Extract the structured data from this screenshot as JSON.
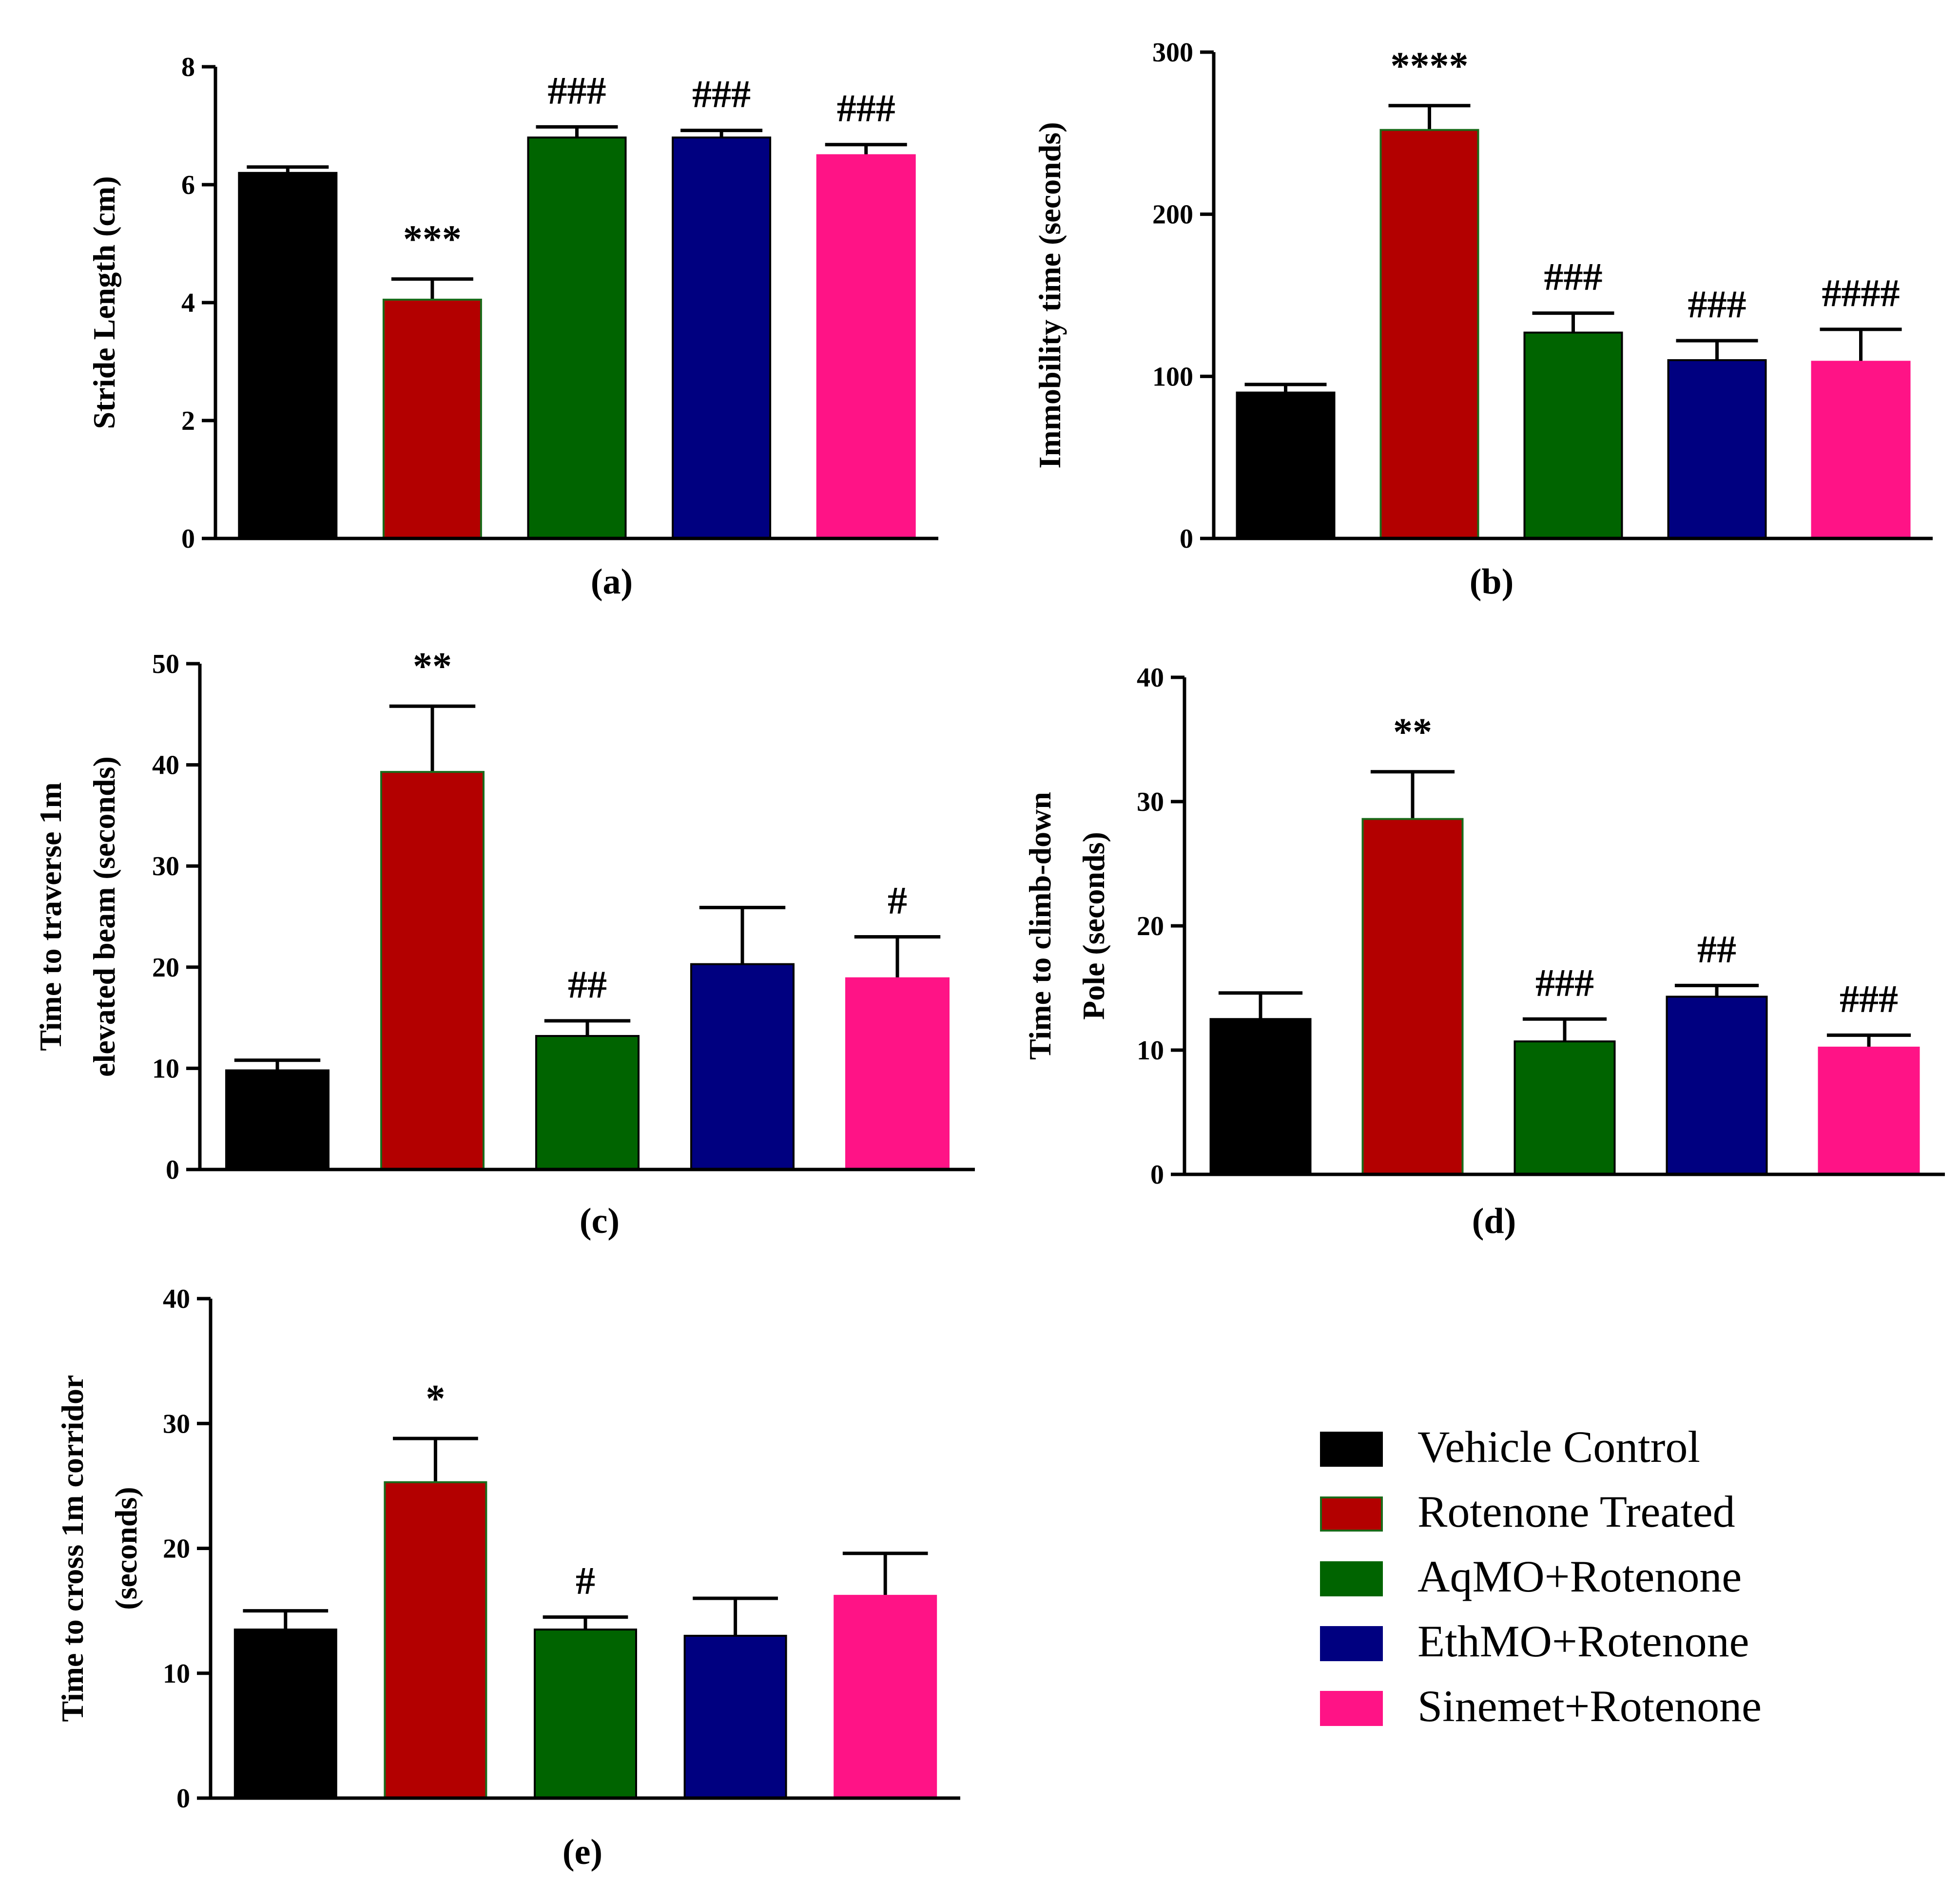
{
  "figure_title": "",
  "groups": [
    {
      "name": "Vehicle Control",
      "color": "#000000"
    },
    {
      "name": "Rotenone Treated",
      "color": "#b30000"
    },
    {
      "name": "AqMO+Rotenone",
      "color": "#006400"
    },
    {
      "name": "EthMO+Rotenone",
      "color": "#000080"
    },
    {
      "name": "Sinemet+Rotenone",
      "color": "#ff1386"
    }
  ],
  "chart_data": [
    {
      "type": "bar",
      "panel": "(a)",
      "ylabel": [
        "Stride Length (cm)"
      ],
      "ylim": [
        0,
        8
      ],
      "yticks": [
        0,
        2,
        4,
        6,
        8
      ],
      "categories": [
        "Vehicle Control",
        "Rotenone Treated",
        "AqMO+Rotenone",
        "EthMO+Rotenone",
        "Sinemet+Rotenone"
      ],
      "values": [
        6.2,
        4.05,
        6.8,
        6.8,
        6.5
      ],
      "errors": [
        0.1,
        0.35,
        0.18,
        0.12,
        0.18
      ],
      "significance": [
        "",
        "***",
        "###",
        "###",
        "###"
      ]
    },
    {
      "type": "bar",
      "panel": "(b)",
      "ylabel": [
        "Immobility time (seconds)"
      ],
      "ylim": [
        0,
        300
      ],
      "yticks": [
        0,
        100,
        200,
        300
      ],
      "categories": [
        "Vehicle Control",
        "Rotenone Treated",
        "AqMO+Rotenone",
        "EthMO+Rotenone",
        "Sinemet+Rotenone"
      ],
      "values": [
        90,
        252,
        127,
        110,
        109
      ],
      "errors": [
        5,
        15,
        12,
        12,
        20
      ],
      "significance": [
        "",
        "****",
        "###",
        "###",
        "####"
      ]
    },
    {
      "type": "bar",
      "panel": "(c)",
      "ylabel": [
        "Time to traverse 1m",
        "elevated beam (seconds)"
      ],
      "ylim": [
        0,
        50
      ],
      "yticks": [
        0,
        10,
        20,
        30,
        40,
        50
      ],
      "categories": [
        "Vehicle Control",
        "Rotenone Treated",
        "AqMO+Rotenone",
        "EthMO+Rotenone",
        "Sinemet+Rotenone"
      ],
      "values": [
        9.8,
        39.3,
        13.2,
        20.3,
        18.9
      ],
      "errors": [
        1.0,
        6.5,
        1.5,
        5.6,
        4.1
      ],
      "significance": [
        "",
        "**",
        "##",
        "",
        "#"
      ]
    },
    {
      "type": "bar",
      "panel": "(d)",
      "ylabel": [
        "Time to climb-down",
        "Pole  (seconds)"
      ],
      "ylim": [
        0,
        40
      ],
      "yticks": [
        0,
        10,
        20,
        30,
        40
      ],
      "categories": [
        "Vehicle Control",
        "Rotenone Treated",
        "AqMO+Rotenone",
        "EthMO+Rotenone",
        "Sinemet+Rotenone"
      ],
      "values": [
        12.5,
        28.6,
        10.7,
        14.3,
        10.2
      ],
      "errors": [
        2.1,
        3.8,
        1.8,
        0.9,
        1.0
      ],
      "significance": [
        "",
        "**",
        "###",
        "##",
        "###"
      ]
    },
    {
      "type": "bar",
      "panel": "(e)",
      "ylabel": [
        "Time to cross 1m corridor",
        "(seconds)"
      ],
      "ylim": [
        0,
        40
      ],
      "yticks": [
        0,
        10,
        20,
        30,
        40
      ],
      "categories": [
        "Vehicle Control",
        "Rotenone Treated",
        "AqMO+Rotenone",
        "EthMO+Rotenone",
        "Sinemet+Rotenone"
      ],
      "values": [
        13.5,
        25.3,
        13.5,
        13.0,
        16.2
      ],
      "errors": [
        1.5,
        3.5,
        1.0,
        3.0,
        3.4
      ],
      "significance": [
        "",
        "*",
        "#",
        "",
        ""
      ]
    }
  ]
}
